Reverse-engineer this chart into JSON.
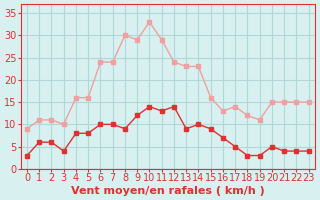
{
  "hours": [
    0,
    1,
    2,
    3,
    4,
    5,
    6,
    7,
    8,
    9,
    10,
    11,
    12,
    13,
    14,
    15,
    16,
    17,
    18,
    19,
    20,
    21,
    22,
    23
  ],
  "wind_avg": [
    3,
    6,
    6,
    4,
    8,
    8,
    10,
    10,
    9,
    12,
    14,
    13,
    14,
    9,
    10,
    9,
    7,
    5,
    3,
    3,
    5,
    4,
    4,
    4
  ],
  "wind_gust": [
    9,
    11,
    11,
    10,
    16,
    16,
    24,
    24,
    30,
    29,
    33,
    29,
    24,
    23,
    23,
    16,
    13,
    14,
    12,
    11,
    15,
    15,
    15,
    15
  ],
  "avg_color": "#e03030",
  "gust_color": "#f0a0a0",
  "bg_color": "#d8f0f0",
  "grid_color": "#b0d8d8",
  "axis_color": "#e03030",
  "xlabel": "Vent moyen/en rafales ( km/h )",
  "yticks": [
    0,
    5,
    10,
    15,
    20,
    25,
    30,
    35
  ],
  "ylim": [
    0,
    37
  ],
  "xlim": [
    -0.5,
    23.5
  ],
  "tick_fontsize": 7,
  "label_fontsize": 8
}
